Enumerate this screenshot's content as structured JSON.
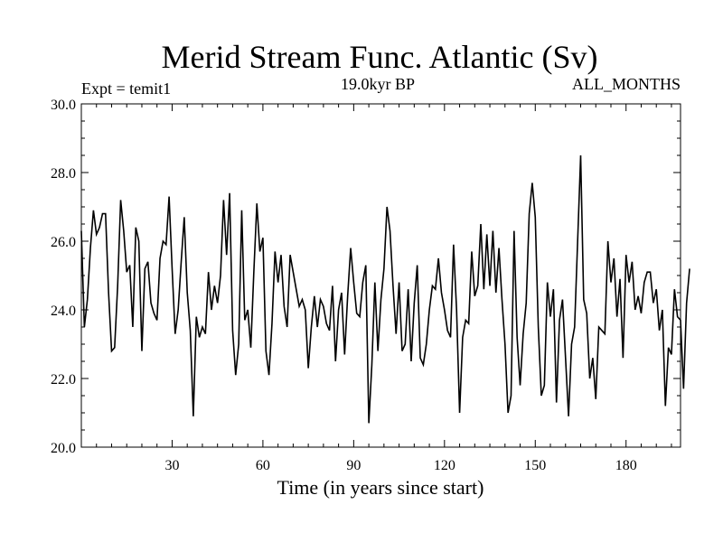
{
  "chart_data": {
    "type": "line",
    "title": "Merid Stream Func. Atlantic (Sv)",
    "subtitle_left": "Expt = temit1",
    "subtitle_center": "19.0kyr BP",
    "subtitle_right": "ALL_MONTHS",
    "xlabel": "Time (in years since start)",
    "ylabel": "",
    "xlim": [
      0,
      198
    ],
    "ylim": [
      20,
      30
    ],
    "x_ticks": [
      30,
      60,
      90,
      120,
      150,
      180
    ],
    "y_ticks": [
      "20.0",
      "22.0",
      "24.0",
      "26.0",
      "28.0",
      "30.0"
    ],
    "grid": false,
    "legend": "none",
    "line_color": "#000000",
    "series": [
      {
        "x_start": 0,
        "x_step": 1,
        "values": [
          26.3,
          23.5,
          24.3,
          25.8,
          26.9,
          26.2,
          26.4,
          26.8,
          26.8,
          24.5,
          22.8,
          22.9,
          24.7,
          27.2,
          26.3,
          25.1,
          25.3,
          23.5,
          26.4,
          26.0,
          22.8,
          25.2,
          25.4,
          24.2,
          23.9,
          23.7,
          25.5,
          26.0,
          25.9,
          27.3,
          25.2,
          23.3,
          24.0,
          25.4,
          26.7,
          24.5,
          23.4,
          20.9,
          23.8,
          23.2,
          23.5,
          23.3,
          25.1,
          24.0,
          24.7,
          24.2,
          25.0,
          27.2,
          25.6,
          27.4,
          23.4,
          22.1,
          23.0,
          26.9,
          23.7,
          24.0,
          22.9,
          25.1,
          27.1,
          25.7,
          26.1,
          22.8,
          22.1,
          23.6,
          25.7,
          24.8,
          25.6,
          24.1,
          23.5,
          25.6,
          25.1,
          24.6,
          24.1,
          24.3,
          24.0,
          22.3,
          23.5,
          24.4,
          23.5,
          24.3,
          24.1,
          23.6,
          23.4,
          24.7,
          22.5,
          24.0,
          24.5,
          22.7,
          24.4,
          25.8,
          24.8,
          23.9,
          23.8,
          24.8,
          25.3,
          20.7,
          22.4,
          24.8,
          22.8,
          24.3,
          25.2,
          27.0,
          26.3,
          24.7,
          23.3,
          24.8,
          22.8,
          23.0,
          24.6,
          22.5,
          24.2,
          25.3,
          22.6,
          22.4,
          23.0,
          24.0,
          24.7,
          24.6,
          25.5,
          24.5,
          24.0,
          23.4,
          23.2,
          25.9,
          24.0,
          21.0,
          23.2,
          23.7,
          23.6,
          25.7,
          24.4,
          24.7,
          26.5,
          24.6,
          26.2,
          24.7,
          26.3,
          24.5,
          25.8,
          24.3,
          23.0,
          21.0,
          21.5,
          26.3,
          23.2,
          21.8,
          23.3,
          24.2,
          26.8,
          27.7,
          26.7,
          23.5,
          21.5,
          21.8,
          24.8,
          23.8,
          24.6,
          21.3,
          23.7,
          24.3,
          22.6,
          20.9,
          23.0,
          23.5,
          26.0,
          28.5,
          24.3,
          23.9,
          22.0,
          22.6,
          21.4,
          23.5,
          23.4,
          23.3,
          26.0,
          24.8,
          25.5,
          23.8,
          24.9,
          22.6,
          25.6,
          24.8,
          25.4,
          24.0,
          24.4,
          23.9,
          24.8,
          25.1,
          25.1,
          24.2,
          24.6,
          23.4,
          24.0,
          21.2,
          22.9,
          22.7,
          24.6,
          23.8,
          23.7,
          21.7,
          24.2,
          25.2
        ]
      }
    ]
  }
}
